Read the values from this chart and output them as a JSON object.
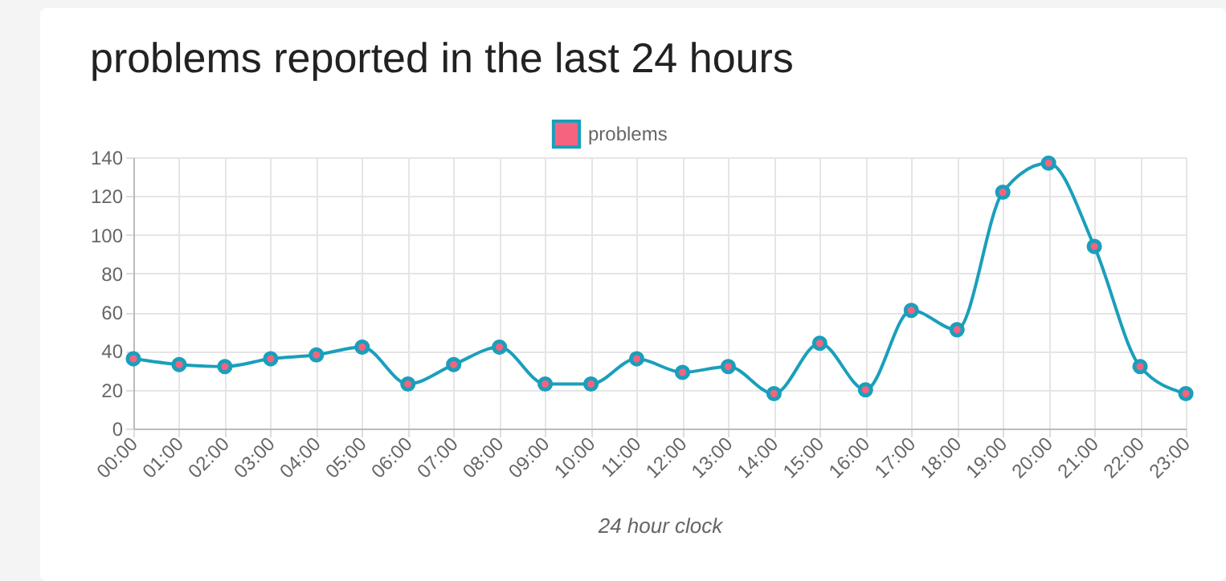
{
  "chart_data": {
    "type": "line",
    "title": "problems reported in the last 24 hours",
    "xlabel": "24 hour clock",
    "categories": [
      "00:00",
      "01:00",
      "02:00",
      "03:00",
      "04:00",
      "05:00",
      "06:00",
      "07:00",
      "08:00",
      "09:00",
      "10:00",
      "11:00",
      "12:00",
      "13:00",
      "14:00",
      "15:00",
      "16:00",
      "17:00",
      "18:00",
      "19:00",
      "20:00",
      "21:00",
      "22:00",
      "23:00"
    ],
    "series": [
      {
        "name": "problems",
        "color": "#1a9fbb",
        "values": [
          36,
          33,
          32,
          36,
          38,
          42,
          23,
          33,
          42,
          23,
          23,
          36,
          29,
          32,
          18,
          44,
          20,
          61,
          51,
          122,
          137,
          94,
          32,
          18
        ]
      }
    ],
    "ylim": [
      0,
      140
    ],
    "yticks": [
      0,
      20,
      40,
      60,
      80,
      100,
      120,
      140
    ],
    "grid": true,
    "legend": "top",
    "marker": "circle"
  }
}
